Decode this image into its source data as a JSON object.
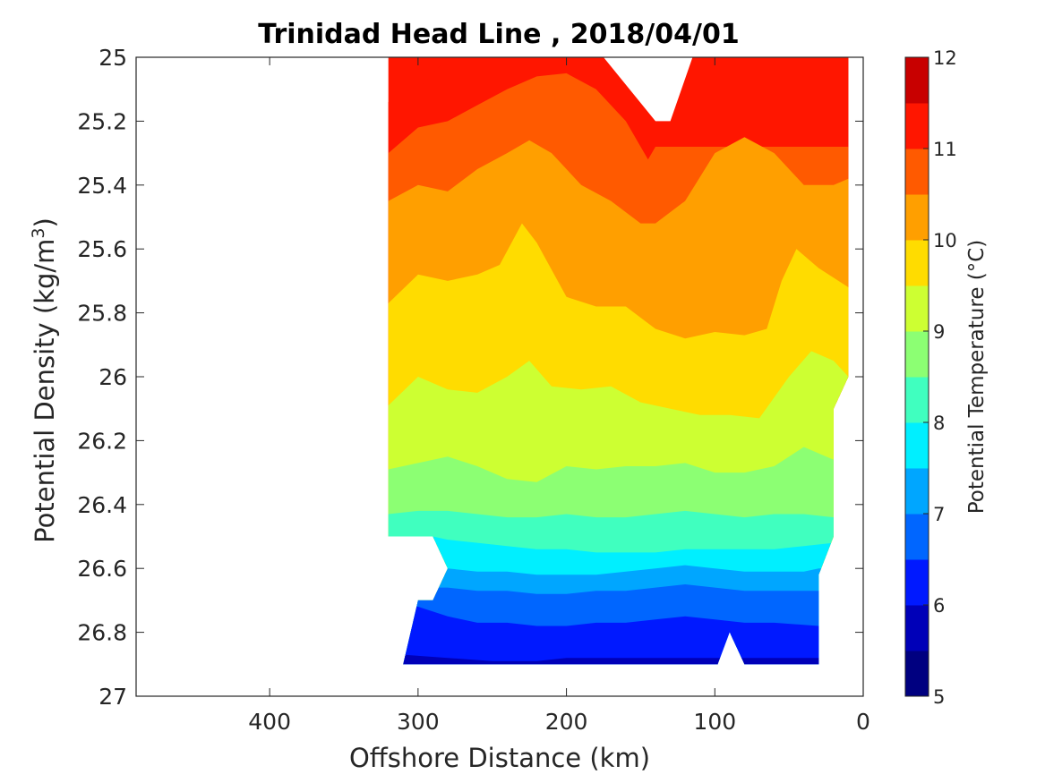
{
  "chart_data": {
    "type": "heatmap",
    "subtype": "filled-contour",
    "title": "Trinidad Head Line , 2018/04/01",
    "xlabel": "Offshore Distance (km)",
    "ylabel": "Potential Density (kg/m3)",
    "ylabel_main": "Potential Density (kg/m",
    "ylabel_sup": "3",
    "ylabel_close": ")",
    "xlim": [
      490,
      0
    ],
    "x_reversed": true,
    "ylim": [
      25,
      27
    ],
    "y_reversed": true,
    "xticks": [
      400,
      300,
      200,
      100,
      0
    ],
    "xtick_labels": [
      "400",
      "300",
      "200",
      "100",
      "0"
    ],
    "yticks": [
      25,
      25.2,
      25.4,
      25.6,
      25.8,
      26,
      26.2,
      26.4,
      26.6,
      26.8,
      27
    ],
    "ytick_labels": [
      "25",
      "25.2",
      "25.4",
      "25.6",
      "25.8",
      "26",
      "26.2",
      "26.4",
      "26.6",
      "26.8",
      "27"
    ],
    "grid": false,
    "colorbar": {
      "label": "Potential Temperature (°C)",
      "range": [
        5,
        12
      ],
      "ticks": [
        5,
        6,
        7,
        8,
        9,
        10,
        11,
        12
      ],
      "tick_labels": [
        "5",
        "6",
        "7",
        "8",
        "9",
        "10",
        "11",
        "12"
      ],
      "levels": [
        5,
        5.5,
        6,
        6.5,
        7,
        7.5,
        8,
        8.5,
        9,
        9.5,
        10,
        10.5,
        11,
        11.5,
        12
      ],
      "colors": [
        "#000080",
        "#0000b8",
        "#0019ff",
        "#0066ff",
        "#00a6ff",
        "#00efff",
        "#40ffbf",
        "#8cff73",
        "#cdff32",
        "#ffdc00",
        "#ff9f00",
        "#ff5a00",
        "#ff1600",
        "#c80000"
      ]
    },
    "data_extent": {
      "x_max_km": 320,
      "x_min_km": 10,
      "density_min": 25,
      "density_max": 26.9
    },
    "isotherms": [
      {
        "level": 11.5,
        "points": [
          [
            320,
            25.14
          ],
          [
            300,
            25.1
          ],
          [
            280,
            25.0
          ]
        ]
      },
      {
        "level": 11,
        "points": [
          [
            320,
            25.3
          ],
          [
            300,
            25.22
          ],
          [
            280,
            25.2
          ],
          [
            260,
            25.15
          ],
          [
            240,
            25.1
          ],
          [
            220,
            25.06
          ],
          [
            200,
            25.05
          ],
          [
            180,
            25.1
          ],
          [
            160,
            25.2
          ],
          [
            145,
            25.32
          ],
          [
            140,
            25.28
          ]
        ]
      },
      {
        "level": 10.5,
        "points": [
          [
            320,
            25.45
          ],
          [
            300,
            25.4
          ],
          [
            280,
            25.42
          ],
          [
            260,
            25.35
          ],
          [
            240,
            25.3
          ],
          [
            225,
            25.26
          ],
          [
            210,
            25.3
          ],
          [
            190,
            25.4
          ],
          [
            170,
            25.45
          ],
          [
            150,
            25.52
          ],
          [
            140,
            25.52
          ],
          [
            120,
            25.45
          ],
          [
            100,
            25.3
          ],
          [
            80,
            25.25
          ],
          [
            60,
            25.3
          ],
          [
            40,
            25.4
          ],
          [
            20,
            25.4
          ],
          [
            10,
            25.38
          ]
        ]
      },
      {
        "level": 10,
        "points": [
          [
            320,
            25.77
          ],
          [
            300,
            25.68
          ],
          [
            280,
            25.7
          ],
          [
            260,
            25.68
          ],
          [
            245,
            25.65
          ],
          [
            230,
            25.52
          ],
          [
            220,
            25.58
          ],
          [
            200,
            25.75
          ],
          [
            180,
            25.78
          ],
          [
            160,
            25.78
          ],
          [
            140,
            25.85
          ],
          [
            120,
            25.88
          ],
          [
            100,
            25.86
          ],
          [
            80,
            25.87
          ],
          [
            65,
            25.85
          ],
          [
            55,
            25.7
          ],
          [
            45,
            25.6
          ],
          [
            30,
            25.66
          ],
          [
            10,
            25.72
          ]
        ]
      },
      {
        "level": 9.5,
        "points": [
          [
            320,
            26.09
          ],
          [
            300,
            26.0
          ],
          [
            280,
            26.04
          ],
          [
            260,
            26.05
          ],
          [
            240,
            26.0
          ],
          [
            225,
            25.95
          ],
          [
            210,
            26.03
          ],
          [
            190,
            26.04
          ],
          [
            170,
            26.03
          ],
          [
            150,
            26.08
          ],
          [
            130,
            26.1
          ],
          [
            110,
            26.12
          ],
          [
            90,
            26.12
          ],
          [
            70,
            26.13
          ],
          [
            50,
            26.0
          ],
          [
            35,
            25.92
          ],
          [
            20,
            25.95
          ],
          [
            10,
            26.0
          ]
        ]
      },
      {
        "level": 9,
        "points": [
          [
            320,
            26.29
          ],
          [
            300,
            26.27
          ],
          [
            280,
            26.25
          ],
          [
            260,
            26.28
          ],
          [
            240,
            26.32
          ],
          [
            220,
            26.33
          ],
          [
            200,
            26.28
          ],
          [
            180,
            26.29
          ],
          [
            160,
            26.28
          ],
          [
            140,
            26.28
          ],
          [
            120,
            26.27
          ],
          [
            100,
            26.3
          ],
          [
            80,
            26.3
          ],
          [
            60,
            26.28
          ],
          [
            40,
            26.22
          ],
          [
            20,
            26.26
          ]
        ]
      },
      {
        "level": 8.5,
        "points": [
          [
            320,
            26.43
          ],
          [
            300,
            26.42
          ],
          [
            280,
            26.42
          ],
          [
            260,
            26.43
          ],
          [
            240,
            26.44
          ],
          [
            220,
            26.44
          ],
          [
            200,
            26.43
          ],
          [
            180,
            26.44
          ],
          [
            160,
            26.44
          ],
          [
            140,
            26.43
          ],
          [
            120,
            26.42
          ],
          [
            100,
            26.43
          ],
          [
            80,
            26.44
          ],
          [
            60,
            26.43
          ],
          [
            40,
            26.43
          ],
          [
            20,
            26.44
          ]
        ]
      },
      {
        "level": 8,
        "points": [
          [
            290,
            26.5
          ],
          [
            280,
            26.51
          ],
          [
            260,
            26.52
          ],
          [
            240,
            26.53
          ],
          [
            220,
            26.54
          ],
          [
            200,
            26.54
          ],
          [
            180,
            26.55
          ],
          [
            160,
            26.55
          ],
          [
            140,
            26.55
          ],
          [
            120,
            26.54
          ],
          [
            100,
            26.54
          ],
          [
            80,
            26.54
          ],
          [
            60,
            26.54
          ],
          [
            40,
            26.53
          ],
          [
            20,
            26.52
          ]
        ]
      },
      {
        "level": 7.5,
        "points": [
          [
            280,
            26.6
          ],
          [
            260,
            26.61
          ],
          [
            240,
            26.61
          ],
          [
            220,
            26.62
          ],
          [
            200,
            26.62
          ],
          [
            180,
            26.62
          ],
          [
            160,
            26.61
          ],
          [
            140,
            26.6
          ],
          [
            120,
            26.59
          ],
          [
            100,
            26.6
          ],
          [
            80,
            26.61
          ],
          [
            60,
            26.61
          ],
          [
            40,
            26.61
          ],
          [
            30,
            26.6
          ]
        ]
      },
      {
        "level": 7,
        "points": [
          [
            280,
            26.66
          ],
          [
            260,
            26.67
          ],
          [
            240,
            26.67
          ],
          [
            220,
            26.68
          ],
          [
            200,
            26.68
          ],
          [
            180,
            26.67
          ],
          [
            160,
            26.67
          ],
          [
            140,
            26.66
          ],
          [
            120,
            26.65
          ],
          [
            100,
            26.66
          ],
          [
            80,
            26.67
          ],
          [
            60,
            26.67
          ],
          [
            30,
            26.67
          ]
        ]
      },
      {
        "level": 6.5,
        "points": [
          [
            300,
            26.72
          ],
          [
            280,
            26.75
          ],
          [
            260,
            26.77
          ],
          [
            240,
            26.77
          ],
          [
            220,
            26.78
          ],
          [
            200,
            26.78
          ],
          [
            180,
            26.77
          ],
          [
            160,
            26.77
          ],
          [
            140,
            26.76
          ],
          [
            120,
            26.75
          ],
          [
            100,
            26.76
          ],
          [
            80,
            26.77
          ],
          [
            60,
            26.77
          ],
          [
            30,
            26.78
          ]
        ]
      },
      {
        "level": 6,
        "points": [
          [
            310,
            26.87
          ],
          [
            280,
            26.88
          ],
          [
            250,
            26.89
          ],
          [
            220,
            26.89
          ],
          [
            200,
            26.88
          ],
          [
            180,
            26.88
          ],
          [
            150,
            26.88
          ],
          [
            120,
            26.88
          ]
        ]
      }
    ],
    "gaps": [
      {
        "description": "no data near surface",
        "points": [
          [
            175,
            25
          ],
          [
            140,
            25.2
          ],
          [
            130,
            25.2
          ],
          [
            115,
            25
          ]
        ]
      },
      {
        "description": "no data near bottom",
        "points": [
          [
            98,
            26.9
          ],
          [
            90,
            26.8
          ],
          [
            82,
            26.9
          ]
        ]
      }
    ]
  }
}
